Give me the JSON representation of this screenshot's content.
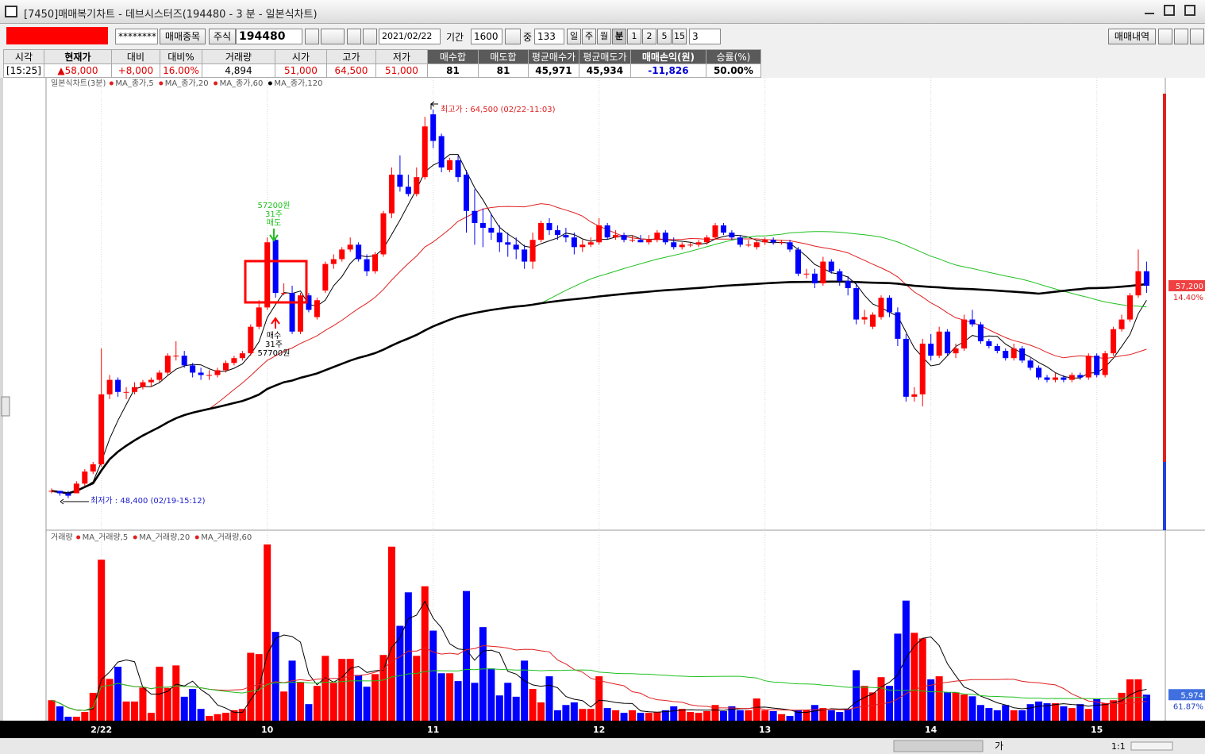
{
  "window": {
    "title": "[7450]매매복기차트 - 데브시스터즈(194480 - 3 분 - 일본식차트)"
  },
  "toolbar": {
    "masked": "********",
    "trade_item_button": "매매종목",
    "market": "주식",
    "code": "194480",
    "date": "2021/02/22",
    "period_label": "기간",
    "period": "1600",
    "mid_label": "중",
    "count": "133",
    "intervals": [
      "일",
      "주",
      "월",
      "분",
      "1",
      "2",
      "5",
      "15"
    ],
    "interval_value": "3",
    "history_button": "매매내역"
  },
  "summary": {
    "headers": [
      "시각",
      "현재가",
      "대비",
      "대비%",
      "거래량",
      "시가",
      "고가",
      "저가",
      "매수합",
      "매도합",
      "평균매수가",
      "평균매도가",
      "매매손익(원)",
      "승률(%)"
    ],
    "values": [
      "[15:25]",
      "▲58,000",
      "+8,000",
      "16.00%",
      "4,894",
      "51,000",
      "64,500",
      "51,000",
      "81",
      "81",
      "45,971",
      "45,934",
      "-11,826",
      "50.00%"
    ]
  },
  "chart_data": [
    {
      "type": "candlestick",
      "title": "일본식차트(3분)",
      "moving_averages": [
        {
          "name": "MA_종가,5",
          "color": "#000000"
        },
        {
          "name": "MA_종가,20",
          "color": "#e02020"
        },
        {
          "name": "MA_종가,60",
          "color": "#20c020"
        },
        {
          "name": "MA_종가,120",
          "color": "#000000"
        }
      ],
      "colors": {
        "up": "#ff0000",
        "down": "#0000ff"
      },
      "categories": [
        null,
        null,
        null,
        null,
        null,
        null,
        "2/22",
        null,
        null,
        null,
        null,
        null,
        null,
        null,
        null,
        null,
        null,
        null,
        null,
        null,
        null,
        null,
        null,
        null,
        null,
        null,
        "10",
        null,
        null,
        null,
        null,
        null,
        null,
        null,
        null,
        null,
        null,
        null,
        null,
        null,
        null,
        null,
        null,
        null,
        null,
        null,
        "11",
        null,
        null,
        null,
        null,
        null,
        null,
        null,
        null,
        null,
        null,
        null,
        null,
        null,
        null,
        null,
        null,
        null,
        null,
        null,
        "12",
        null,
        null,
        null,
        null,
        null,
        null,
        null,
        null,
        null,
        null,
        null,
        null,
        null,
        null,
        null,
        null,
        null,
        null,
        null,
        "13",
        null,
        null,
        null,
        null,
        null,
        null,
        null,
        null,
        null,
        null,
        null,
        null,
        null,
        null,
        null,
        null,
        null,
        null,
        null,
        "14",
        null,
        null,
        null,
        null,
        null,
        null,
        null,
        null,
        null,
        null,
        null,
        null,
        null,
        null,
        null,
        null,
        null,
        null,
        null,
        "15",
        null,
        null,
        null,
        null,
        null,
        null
      ],
      "ohlc": [
        [
          48700,
          48800,
          48600,
          48700
        ],
        [
          48700,
          48700,
          48500,
          48600
        ],
        [
          48600,
          48700,
          48400,
          48500
        ],
        [
          48600,
          49100,
          48600,
          49000
        ],
        [
          49000,
          49600,
          48900,
          49500
        ],
        [
          49500,
          49900,
          49400,
          49800
        ],
        [
          49800,
          54600,
          49700,
          52700
        ],
        [
          52700,
          53500,
          52500,
          53300
        ],
        [
          53300,
          53400,
          52600,
          52800
        ],
        [
          52800,
          53000,
          52500,
          52800
        ],
        [
          52800,
          53200,
          52700,
          53000
        ],
        [
          53000,
          53300,
          52900,
          53200
        ],
        [
          53200,
          53400,
          53000,
          53300
        ],
        [
          53300,
          53700,
          53200,
          53600
        ],
        [
          53600,
          54400,
          53500,
          54300
        ],
        [
          54300,
          54900,
          54100,
          54300
        ],
        [
          54300,
          54500,
          53800,
          53900
        ],
        [
          53900,
          54000,
          53400,
          53600
        ],
        [
          53600,
          53800,
          53300,
          53500
        ],
        [
          53500,
          53700,
          53300,
          53500
        ],
        [
          53500,
          53800,
          53400,
          53700
        ],
        [
          53700,
          54100,
          53600,
          54000
        ],
        [
          54000,
          54300,
          53900,
          54200
        ],
        [
          54200,
          54500,
          54100,
          54400
        ],
        [
          54400,
          55600,
          54300,
          55500
        ],
        [
          55500,
          56600,
          55400,
          56300
        ],
        [
          56300,
          59200,
          56200,
          59000
        ],
        [
          59100,
          59200,
          56700,
          56900
        ],
        [
          56900,
          57300,
          56800,
          56900
        ],
        [
          56900,
          57200,
          55200,
          55300
        ],
        [
          55300,
          56900,
          55200,
          56800
        ],
        [
          56800,
          56900,
          56100,
          56200
        ],
        [
          55900,
          56700,
          55800,
          56600
        ],
        [
          57000,
          58200,
          56900,
          58100
        ],
        [
          58100,
          58500,
          57900,
          58300
        ],
        [
          58300,
          58800,
          58200,
          58700
        ],
        [
          58700,
          59200,
          58600,
          58900
        ],
        [
          58900,
          59000,
          58200,
          58300
        ],
        [
          58300,
          58500,
          57600,
          57800
        ],
        [
          57800,
          58600,
          57700,
          58500
        ],
        [
          58500,
          60300,
          58400,
          60200
        ],
        [
          60200,
          62100,
          60000,
          61800
        ],
        [
          61800,
          62600,
          61100,
          61300
        ],
        [
          61300,
          61800,
          60900,
          61000
        ],
        [
          61000,
          62100,
          60900,
          61700
        ],
        [
          61700,
          64200,
          61600,
          63800
        ],
        [
          64300,
          64500,
          62900,
          63200
        ],
        [
          63400,
          63500,
          61900,
          62100
        ],
        [
          62000,
          62500,
          61900,
          62400
        ],
        [
          62400,
          62600,
          61500,
          61700
        ],
        [
          61800,
          62000,
          59400,
          60300
        ],
        [
          60300,
          61200,
          58900,
          59800
        ],
        [
          59800,
          60400,
          58800,
          59600
        ],
        [
          59600,
          60200,
          59100,
          59400
        ],
        [
          59400,
          59700,
          58600,
          59000
        ],
        [
          59000,
          59400,
          58400,
          58900
        ],
        [
          58900,
          59200,
          58300,
          58700
        ],
        [
          58700,
          58900,
          57900,
          58200
        ],
        [
          58200,
          59400,
          57900,
          59100
        ],
        [
          59100,
          59900,
          59000,
          59800
        ],
        [
          59800,
          60000,
          59300,
          59500
        ],
        [
          59500,
          59700,
          59100,
          59300
        ],
        [
          59300,
          59600,
          59000,
          59200
        ],
        [
          59200,
          59400,
          58500,
          58800
        ],
        [
          58800,
          59100,
          58600,
          58900
        ],
        [
          58900,
          59200,
          58800,
          59000
        ],
        [
          59000,
          60000,
          58900,
          59700
        ],
        [
          59700,
          59800,
          59100,
          59200
        ],
        [
          59200,
          59500,
          59100,
          59300
        ],
        [
          59300,
          59400,
          59000,
          59100
        ],
        [
          59100,
          59300,
          59000,
          59100
        ],
        [
          59100,
          59300,
          59000,
          59000
        ],
        [
          59000,
          59300,
          58900,
          59100
        ],
        [
          59100,
          59500,
          59000,
          59400
        ],
        [
          59400,
          59500,
          58900,
          59000
        ],
        [
          59000,
          59200,
          58700,
          58800
        ],
        [
          58800,
          59000,
          58700,
          58900
        ],
        [
          58900,
          59000,
          58800,
          58900
        ],
        [
          58900,
          59100,
          58800,
          59000
        ],
        [
          59000,
          59300,
          58900,
          59200
        ],
        [
          59200,
          59800,
          59100,
          59700
        ],
        [
          59700,
          59800,
          59300,
          59400
        ],
        [
          59400,
          59500,
          59100,
          59200
        ],
        [
          59200,
          59300,
          58800,
          58900
        ],
        [
          58900,
          59100,
          58800,
          58900
        ],
        [
          58800,
          59100,
          58700,
          59000
        ],
        [
          59000,
          59200,
          58900,
          59100
        ],
        [
          59100,
          59200,
          58900,
          59000
        ],
        [
          59000,
          59100,
          58900,
          59000
        ],
        [
          59000,
          59100,
          58600,
          58700
        ],
        [
          58700,
          58800,
          57600,
          57700
        ],
        [
          57700,
          57900,
          57500,
          57700
        ],
        [
          57700,
          57900,
          57100,
          57300
        ],
        [
          57300,
          58400,
          57200,
          58200
        ],
        [
          58200,
          58300,
          57700,
          57800
        ],
        [
          57800,
          57900,
          57200,
          57400
        ],
        [
          57400,
          57600,
          56800,
          57100
        ],
        [
          57100,
          57300,
          55600,
          55800
        ],
        [
          55800,
          56200,
          55600,
          55900
        ],
        [
          55500,
          56100,
          55400,
          56000
        ],
        [
          55900,
          56800,
          55800,
          56700
        ],
        [
          56700,
          56800,
          55900,
          56100
        ],
        [
          56100,
          56300,
          54700,
          55000
        ],
        [
          55000,
          55200,
          52400,
          52600
        ],
        [
          52600,
          53000,
          52400,
          52700
        ],
        [
          52700,
          55000,
          52200,
          54800
        ],
        [
          54800,
          55200,
          54100,
          54300
        ],
        [
          54300,
          55500,
          54200,
          55300
        ],
        [
          55300,
          55400,
          54300,
          54400
        ],
        [
          54400,
          54800,
          54200,
          54600
        ],
        [
          54600,
          56000,
          54500,
          55800
        ],
        [
          55800,
          56200,
          55500,
          55600
        ],
        [
          55600,
          55700,
          54800,
          54900
        ],
        [
          54900,
          55000,
          54600,
          54700
        ],
        [
          54700,
          54800,
          54400,
          54500
        ],
        [
          54500,
          54600,
          54100,
          54200
        ],
        [
          54200,
          54800,
          54100,
          54600
        ],
        [
          54600,
          54700,
          54000,
          54100
        ],
        [
          54100,
          54200,
          53700,
          53800
        ],
        [
          53800,
          53900,
          53300,
          53400
        ],
        [
          53400,
          53500,
          53200,
          53300
        ],
        [
          53300,
          53600,
          53200,
          53400
        ],
        [
          53400,
          53500,
          53200,
          53300
        ],
        [
          53300,
          53600,
          53200,
          53500
        ],
        [
          53500,
          53600,
          53300,
          53400
        ],
        [
          53400,
          54400,
          53300,
          54300
        ],
        [
          54300,
          54400,
          53400,
          53500
        ],
        [
          53500,
          54500,
          53400,
          54400
        ],
        [
          54400,
          55500,
          54300,
          55400
        ],
        [
          55400,
          56000,
          55300,
          55800
        ],
        [
          55800,
          56900,
          55700,
          56800
        ],
        [
          56800,
          58700,
          56700,
          57800
        ],
        [
          57800,
          58200,
          56900,
          57200
        ]
      ],
      "ylim": [
        47170,
        65750
      ],
      "annotations": {
        "high": "최고가 : 64,500 (02/22-11:03)",
        "low": "최저가 : 48,400 (02/19-15:12)",
        "sell": [
          "57200원",
          "31주",
          "매도"
        ],
        "buy": [
          "매수",
          "31주",
          "57700원"
        ]
      },
      "last_price": {
        "value": 57200,
        "label": "57,200"
      },
      "change": "14.40%"
    },
    {
      "type": "bar",
      "title": "거래량",
      "moving_averages": [
        {
          "name": "MA_거래량,5",
          "color": "#000000"
        },
        {
          "name": "MA_거래량,20",
          "color": "#e02020"
        },
        {
          "name": "MA_거래량,60",
          "color": "#20c020"
        }
      ],
      "values": [
        4700,
        3300,
        900,
        900,
        2000,
        6400,
        37000,
        9600,
        12400,
        4400,
        4400,
        7600,
        1800,
        12400,
        7500,
        12700,
        5500,
        7300,
        2700,
        1100,
        1500,
        1800,
        2400,
        2700,
        15600,
        15300,
        40500,
        20400,
        6700,
        13800,
        8900,
        3800,
        8000,
        14900,
        8700,
        14200,
        14200,
        10500,
        7800,
        10700,
        15100,
        40000,
        21800,
        29500,
        14900,
        30900,
        20700,
        10900,
        10900,
        9100,
        29800,
        8700,
        21500,
        12000,
        5800,
        8700,
        5500,
        13800,
        7300,
        4200,
        10200,
        2400,
        3600,
        4200,
        2700,
        2700,
        10200,
        2900,
        2400,
        1800,
        2400,
        1800,
        1800,
        2000,
        2400,
        3300,
        2700,
        2000,
        1800,
        2200,
        3600,
        2200,
        3300,
        2400,
        2400,
        5100,
        2400,
        2200,
        1500,
        1100,
        2400,
        2400,
        3600,
        2900,
        2400,
        2000,
        2700,
        11600,
        8000,
        6500,
        10000,
        8000,
        20000,
        27600,
        20200,
        18900,
        9500,
        10200,
        6500,
        6500,
        6000,
        5600,
        3600,
        2900,
        2400,
        3600,
        2400,
        2400,
        3800,
        4400,
        4000,
        4000,
        3300,
        2900,
        3800,
        2700,
        5100,
        4000,
        4700,
        6400,
        9500,
        9500,
        5974
      ],
      "ylim": [
        0,
        40500
      ],
      "last_volume": {
        "value": 5974,
        "label": "5,974"
      },
      "ratio": "61.87%"
    }
  ],
  "bottom_bar": {
    "font_button": "가",
    "zoom": "1:1"
  }
}
